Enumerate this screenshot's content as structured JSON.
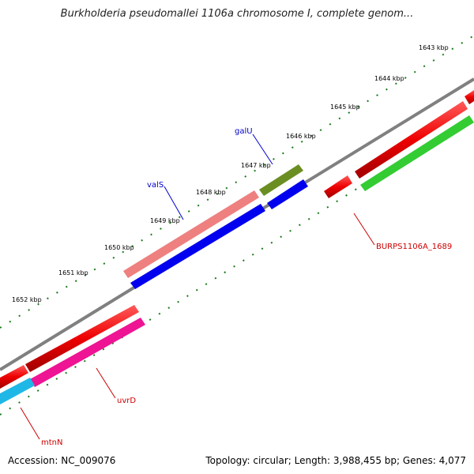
{
  "header": {
    "title": "Burkholderia pseudomallei 1106a chromosome I, complete genom..."
  },
  "footer": {
    "accession": "Accession: NC_009076",
    "stats": "Topology: circular; Length: 3,988,455 bp; Genes: 4,077"
  },
  "scale": {
    "labels": [
      "1643 kbp",
      "1644 kbp",
      "1645 kbp",
      "1646 kbp",
      "1647 kbp",
      "1648 kbp",
      "1649 kbp",
      "1650 kbp",
      "1651 kbp",
      "1652 kbp"
    ]
  },
  "genes": {
    "galU": "galU",
    "valS": "valS",
    "burps": "BURPS1106A_1689",
    "uvrD": "uvrD",
    "mtnN": "mtnN"
  },
  "colors": {
    "red": "#ee0000",
    "blue": "#0000ee",
    "pink": "#ee8080",
    "olive": "#6b8e23",
    "green": "#33cc33",
    "magenta": "#ee1493",
    "cyan": "#1fb8e6",
    "backbone": "#808080",
    "ticks": "#1a7a1a"
  }
}
